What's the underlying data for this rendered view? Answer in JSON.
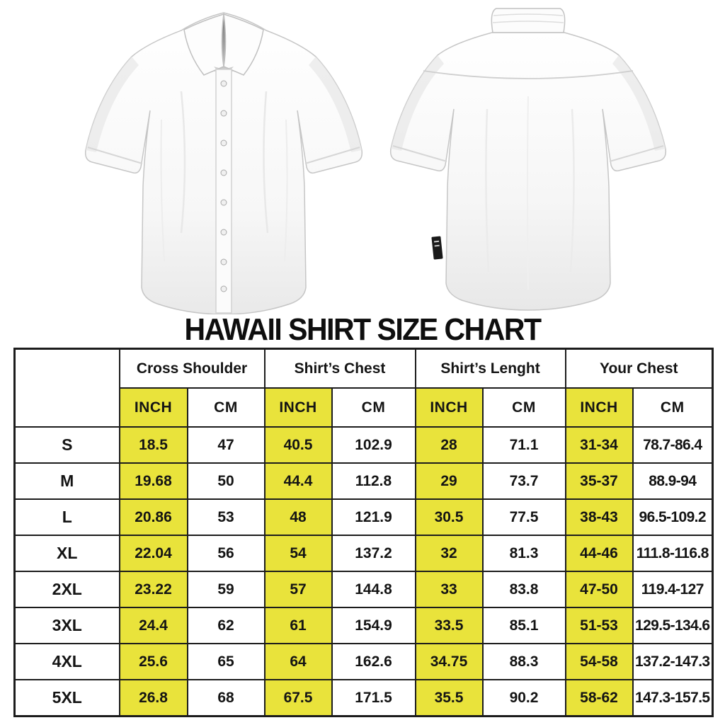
{
  "title": "HAWAII SHIRT SIZE CHART",
  "images": {
    "front_name": "shirt-front-image",
    "back_name": "shirt-back-image"
  },
  "colors": {
    "highlight_yellow": "#e9e33b",
    "table_border": "#1c1c1c",
    "title_text": "#0e0e0e",
    "shirt_shadow_gray": "#d9d9d9"
  },
  "chart_data": {
    "type": "table",
    "title": "HAWAII SHIRT SIZE CHART",
    "column_groups": [
      {
        "label": "Cross Shoulder"
      },
      {
        "label": "Shirt’s Chest"
      },
      {
        "label": "Shirt’s Lenght"
      },
      {
        "label": "Your Chest"
      }
    ],
    "unit_headers": {
      "inch": "INCH",
      "cm": "CM"
    },
    "rows": [
      {
        "size": "S",
        "cells": [
          "18.5",
          "47",
          "40.5",
          "102.9",
          "28",
          "71.1",
          "31-34",
          "78.7-86.4"
        ]
      },
      {
        "size": "M",
        "cells": [
          "19.68",
          "50",
          "44.4",
          "112.8",
          "29",
          "73.7",
          "35-37",
          "88.9-94"
        ]
      },
      {
        "size": "L",
        "cells": [
          "20.86",
          "53",
          "48",
          "121.9",
          "30.5",
          "77.5",
          "38-43",
          "96.5-109.2"
        ]
      },
      {
        "size": "XL",
        "cells": [
          "22.04",
          "56",
          "54",
          "137.2",
          "32",
          "81.3",
          "44-46",
          "111.8-116.8"
        ]
      },
      {
        "size": "2XL",
        "cells": [
          "23.22",
          "59",
          "57",
          "144.8",
          "33",
          "83.8",
          "47-50",
          "119.4-127"
        ]
      },
      {
        "size": "3XL",
        "cells": [
          "24.4",
          "62",
          "61",
          "154.9",
          "33.5",
          "85.1",
          "51-53",
          "129.5-134.6"
        ]
      },
      {
        "size": "4XL",
        "cells": [
          "25.6",
          "65",
          "64",
          "162.6",
          "34.75",
          "88.3",
          "54-58",
          "137.2-147.3"
        ]
      },
      {
        "size": "5XL",
        "cells": [
          "26.8",
          "68",
          "67.5",
          "171.5",
          "35.5",
          "90.2",
          "58-62",
          "147.3-157.5"
        ]
      }
    ]
  }
}
